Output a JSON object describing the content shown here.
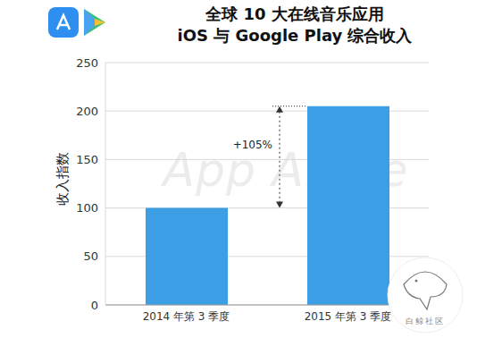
{
  "chart_data": {
    "type": "bar",
    "title": "全球 10 大在线音乐应用",
    "subtitle": "iOS 与 Google Play 综合收入",
    "y_label": "收入指数",
    "categories": [
      "2014 年第 3 季度",
      "2015 年第 3 季度"
    ],
    "values": [
      100,
      205
    ],
    "color": "#3c9ee5",
    "ylim": [
      0,
      250
    ],
    "yticks": [
      0,
      50,
      100,
      150,
      200,
      250
    ],
    "grid": true,
    "annotation": "+105%",
    "watermarks": [
      "App Annie",
      "白鲸社区"
    ]
  }
}
